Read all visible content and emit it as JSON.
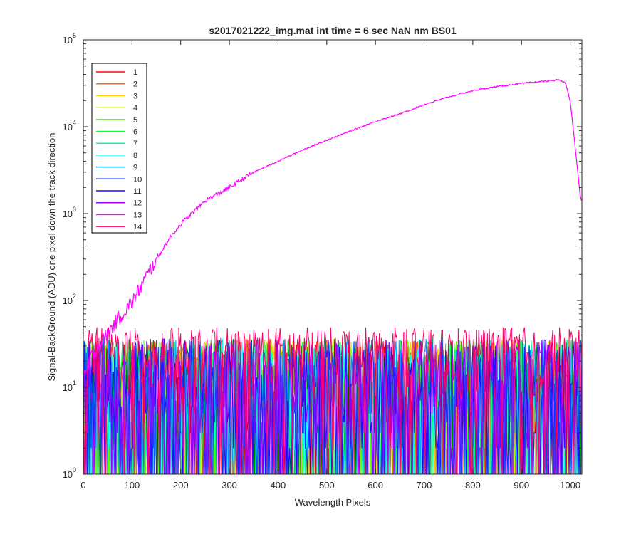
{
  "chart_data": {
    "type": "line",
    "title": "s2017021222_img.mat int time = 6 sec  NaN nm BS01",
    "xlabel": "Wavelength Pixels",
    "ylabel": "Signal-BackGround (ADU) one pixel down the track direction",
    "xlim": [
      0,
      1024
    ],
    "ylim": [
      1,
      100000
    ],
    "yscale": "log",
    "grid": false,
    "legend_position": "top-left",
    "x_ticks": [
      0,
      100,
      200,
      300,
      400,
      500,
      600,
      700,
      800,
      900,
      1000
    ],
    "y_ticks": [
      {
        "value": 1,
        "base": "10",
        "exp": "0"
      },
      {
        "value": 10,
        "base": "10",
        "exp": "1"
      },
      {
        "value": 100,
        "base": "10",
        "exp": "2"
      },
      {
        "value": 1000,
        "base": "10",
        "exp": "3"
      },
      {
        "value": 10000,
        "base": "10",
        "exp": "4"
      },
      {
        "value": 100000,
        "base": "10",
        "exp": "5"
      }
    ],
    "series": [
      {
        "name": "1",
        "color": "#ff0000"
      },
      {
        "name": "2",
        "color": "#ff6600"
      },
      {
        "name": "3",
        "color": "#ffcc00"
      },
      {
        "name": "4",
        "color": "#ccff00"
      },
      {
        "name": "5",
        "color": "#66ff00"
      },
      {
        "name": "6",
        "color": "#00ff33"
      },
      {
        "name": "7",
        "color": "#00ff99"
      },
      {
        "name": "8",
        "color": "#00ffff"
      },
      {
        "name": "9",
        "color": "#0099ff"
      },
      {
        "name": "10",
        "color": "#0033ff"
      },
      {
        "name": "11",
        "color": "#3300ff"
      },
      {
        "name": "12",
        "color": "#9900ff"
      },
      {
        "name": "13",
        "color": "#ff00ff",
        "x": [
          0,
          20,
          40,
          60,
          80,
          100,
          120,
          150,
          180,
          200,
          250,
          300,
          350,
          400,
          450,
          500,
          550,
          600,
          650,
          700,
          750,
          800,
          850,
          900,
          950,
          975,
          990,
          1000,
          1010,
          1020,
          1024
        ],
        "y": [
          12,
          25,
          35,
          50,
          70,
          95,
          150,
          300,
          550,
          760,
          1400,
          2000,
          3000,
          4000,
          5400,
          7000,
          9000,
          11500,
          14000,
          18000,
          22000,
          26000,
          29000,
          31500,
          33500,
          34500,
          32000,
          20000,
          6000,
          1700,
          1300
        ]
      },
      {
        "name": "14",
        "color": "#ff0066"
      }
    ],
    "noise_series_range": [
      1,
      60
    ]
  }
}
